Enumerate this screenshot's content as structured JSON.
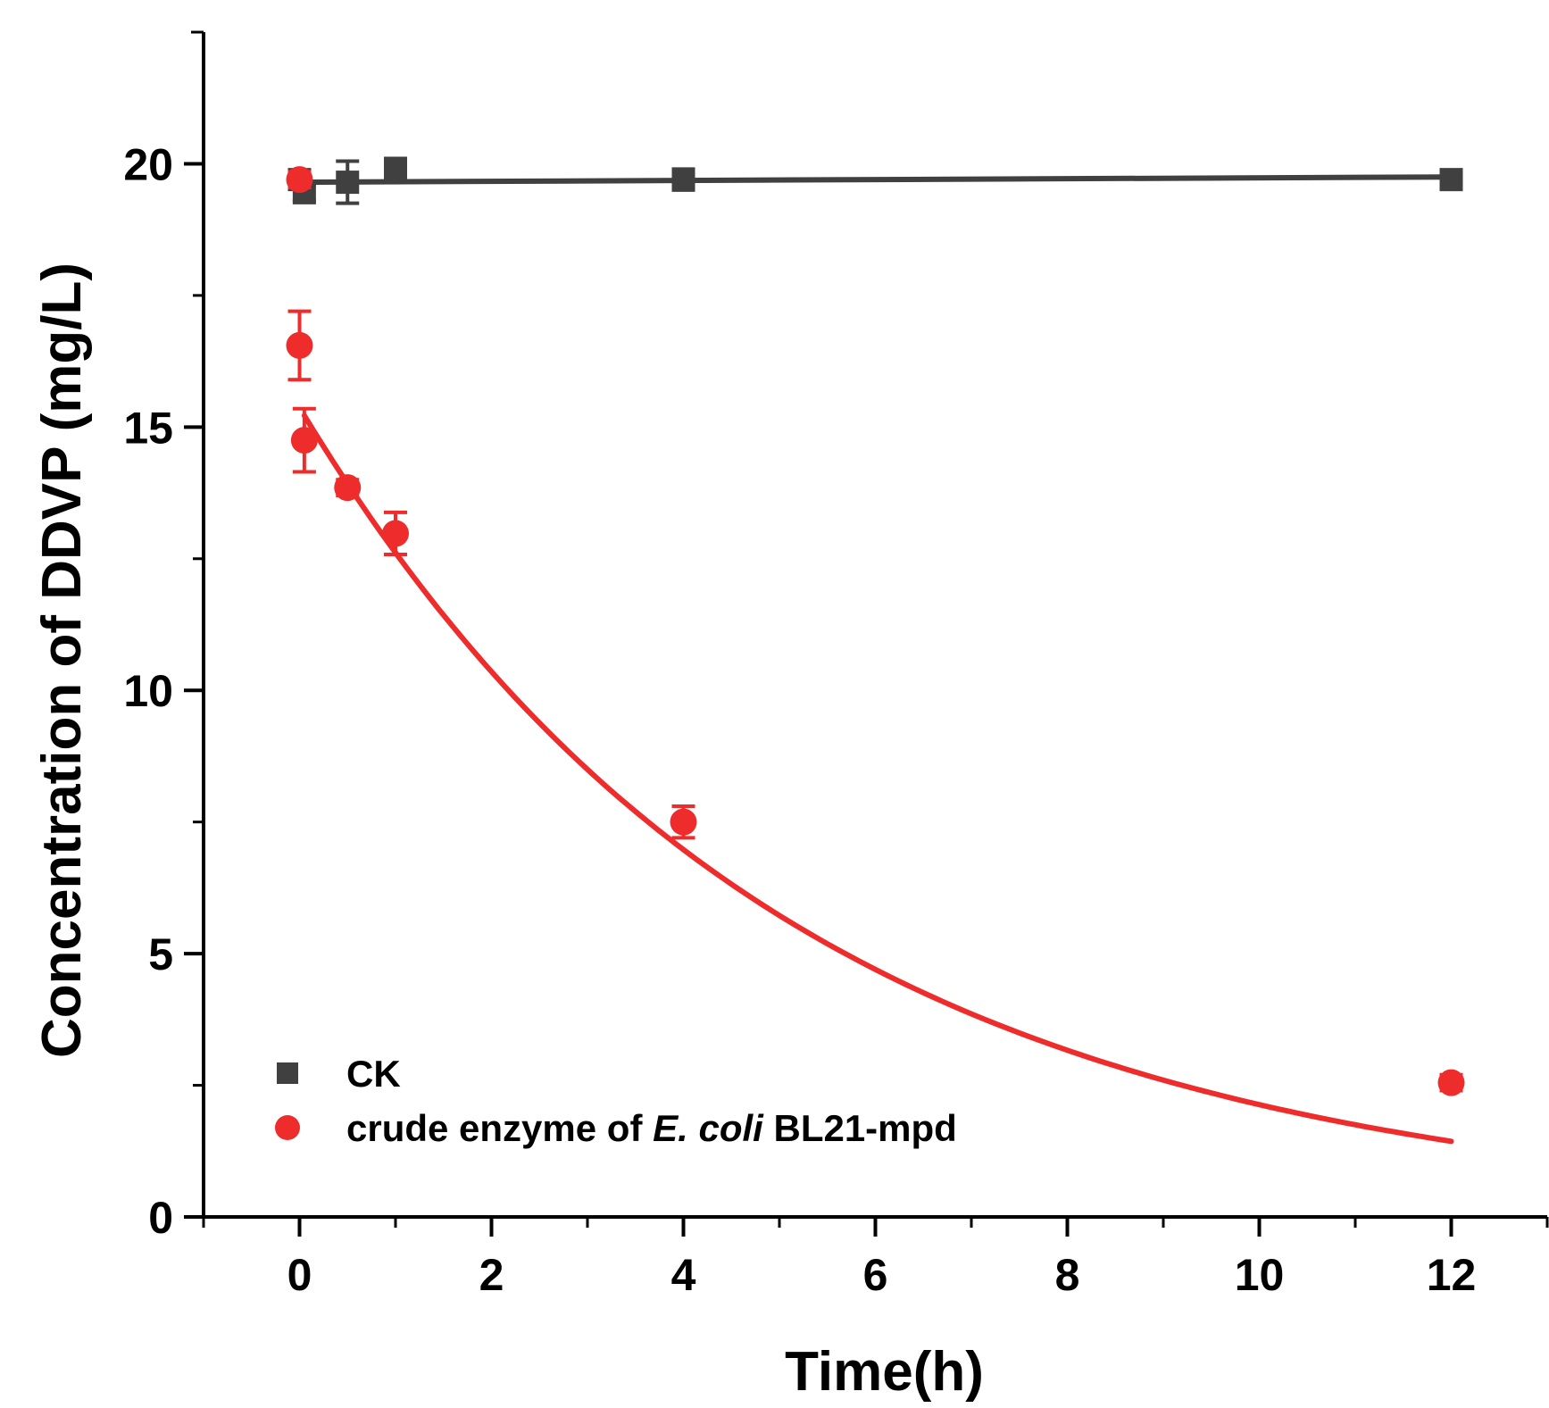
{
  "chart_data": {
    "type": "scatter",
    "title": "",
    "xlabel": "Time(h)",
    "ylabel": "Concentration of DDVP (mg/L)",
    "xlim": [
      -1,
      13
    ],
    "ylim": [
      0,
      22.5
    ],
    "xticks": [
      0,
      2,
      4,
      6,
      8,
      10,
      12
    ],
    "xticks_minor": [
      -1,
      1,
      3,
      5,
      7,
      9,
      11,
      13
    ],
    "yticks": [
      0,
      5,
      10,
      15,
      20
    ],
    "yticks_minor": [
      2.5,
      7.5,
      12.5,
      17.5,
      22.5
    ],
    "grid": false,
    "legend_position": "bottom-left",
    "series": [
      {
        "name": "CK",
        "marker": "square",
        "color": "#404040",
        "x": [
          0,
          0.05,
          0.5,
          1,
          4,
          12
        ],
        "y": [
          19.7,
          19.45,
          19.65,
          19.9,
          19.7,
          19.7
        ],
        "err": [
          0.15,
          0.15,
          0.4,
          0.2,
          0.2,
          0.1
        ],
        "fit": {
          "kind": "linear",
          "x": [
            0,
            12
          ],
          "y": [
            19.65,
            19.75
          ]
        }
      },
      {
        "name": "crude enzyme of E. coli BL21-mpd",
        "legend_parts": [
          "crude enzyme of ",
          "E. coli",
          " BL21-mpd"
        ],
        "marker": "circle",
        "color": "#ee2c2c",
        "x": [
          0,
          0,
          0.05,
          0.5,
          1,
          4,
          12
        ],
        "y": [
          19.7,
          16.55,
          14.75,
          13.85,
          12.98,
          7.5,
          2.55
        ],
        "err": [
          0.15,
          0.65,
          0.6,
          0.15,
          0.4,
          0.3,
          0.15
        ],
        "fit": {
          "kind": "exponential",
          "a": 15.37,
          "k": 0.1975,
          "x_range": [
            0.05,
            12
          ]
        }
      }
    ]
  }
}
